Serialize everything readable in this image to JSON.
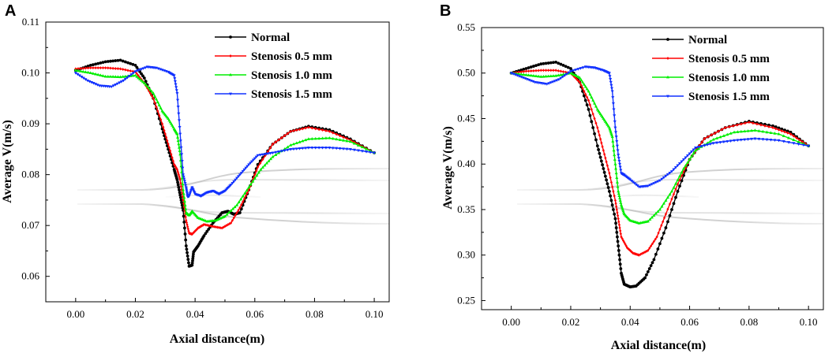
{
  "chart_data": [
    {
      "panel": "A",
      "type": "line",
      "title": "",
      "xlabel": "Axial distance(m)",
      "ylabel": "Average V(m/s)",
      "xlim": [
        -0.01,
        0.105
      ],
      "ylim": [
        0.055,
        0.11
      ],
      "xticks": [
        0.0,
        0.02,
        0.04,
        0.06,
        0.08,
        0.1
      ],
      "xtick_labels": [
        "0.00",
        "0.02",
        "0.04",
        "0.06",
        "0.08",
        "0.10"
      ],
      "yticks": [
        0.06,
        0.07,
        0.08,
        0.09,
        0.1,
        0.11
      ],
      "ytick_labels": [
        "0.06",
        "0.07",
        "0.08",
        "0.09",
        "0.10",
        "0.11"
      ],
      "legend_position": "top-right",
      "series": [
        {
          "name": "Normal",
          "color": "#000000",
          "points": [
            [
              0,
              0.1005
            ],
            [
              0.005,
              0.1015
            ],
            [
              0.01,
              0.1022
            ],
            [
              0.015,
              0.1025
            ],
            [
              0.02,
              0.1015
            ],
            [
              0.023,
              0.099
            ],
            [
              0.026,
              0.095
            ],
            [
              0.029,
              0.089
            ],
            [
              0.031,
              0.085
            ],
            [
              0.033,
              0.081
            ],
            [
              0.034,
              0.079
            ],
            [
              0.035,
              0.076
            ],
            [
              0.036,
              0.073
            ],
            [
              0.037,
              0.066
            ],
            [
              0.038,
              0.062
            ],
            [
              0.039,
              0.0622
            ],
            [
              0.0395,
              0.0648
            ],
            [
              0.041,
              0.066
            ],
            [
              0.043,
              0.068
            ],
            [
              0.046,
              0.0705
            ],
            [
              0.049,
              0.0725
            ],
            [
              0.051,
              0.0728
            ],
            [
              0.053,
              0.0722
            ],
            [
              0.055,
              0.0725
            ],
            [
              0.058,
              0.077
            ],
            [
              0.061,
              0.082
            ],
            [
              0.066,
              0.086
            ],
            [
              0.072,
              0.0885
            ],
            [
              0.078,
              0.0895
            ],
            [
              0.085,
              0.0888
            ],
            [
              0.092,
              0.087
            ],
            [
              0.1,
              0.0843
            ]
          ]
        },
        {
          "name": "Stenosis 0.5 mm",
          "color": "#ff0000",
          "points": [
            [
              0,
              0.1008
            ],
            [
              0.005,
              0.101
            ],
            [
              0.01,
              0.101
            ],
            [
              0.015,
              0.1008
            ],
            [
              0.02,
              0.1002
            ],
            [
              0.023,
              0.098
            ],
            [
              0.026,
              0.095
            ],
            [
              0.029,
              0.09
            ],
            [
              0.031,
              0.086
            ],
            [
              0.033,
              0.082
            ],
            [
              0.034,
              0.081
            ],
            [
              0.035,
              0.079
            ],
            [
              0.036,
              0.075
            ],
            [
              0.037,
              0.071
            ],
            [
              0.038,
              0.0685
            ],
            [
              0.039,
              0.0683
            ],
            [
              0.041,
              0.0695
            ],
            [
              0.043,
              0.0702
            ],
            [
              0.046,
              0.0698
            ],
            [
              0.049,
              0.0695
            ],
            [
              0.052,
              0.0705
            ],
            [
              0.055,
              0.0735
            ],
            [
              0.058,
              0.077
            ],
            [
              0.061,
              0.0815
            ],
            [
              0.066,
              0.086
            ],
            [
              0.072,
              0.0885
            ],
            [
              0.078,
              0.0893
            ],
            [
              0.085,
              0.0885
            ],
            [
              0.092,
              0.0868
            ],
            [
              0.1,
              0.0843
            ]
          ]
        },
        {
          "name": "Stenosis 1.0 mm",
          "color": "#00ee00",
          "points": [
            [
              0,
              0.1005
            ],
            [
              0.005,
              0.1
            ],
            [
              0.01,
              0.0993
            ],
            [
              0.015,
              0.0992
            ],
            [
              0.02,
              0.0995
            ],
            [
              0.023,
              0.098
            ],
            [
              0.026,
              0.096
            ],
            [
              0.029,
              0.0925
            ],
            [
              0.031,
              0.091
            ],
            [
              0.033,
              0.089
            ],
            [
              0.034,
              0.088
            ],
            [
              0.035,
              0.084
            ],
            [
              0.036,
              0.077
            ],
            [
              0.037,
              0.0725
            ],
            [
              0.038,
              0.072
            ],
            [
              0.039,
              0.0728
            ],
            [
              0.041,
              0.0715
            ],
            [
              0.044,
              0.0708
            ],
            [
              0.047,
              0.071
            ],
            [
              0.05,
              0.0718
            ],
            [
              0.054,
              0.074
            ],
            [
              0.058,
              0.0775
            ],
            [
              0.062,
              0.081
            ],
            [
              0.066,
              0.0835
            ],
            [
              0.072,
              0.0858
            ],
            [
              0.078,
              0.087
            ],
            [
              0.085,
              0.0872
            ],
            [
              0.092,
              0.0865
            ],
            [
              0.1,
              0.0843
            ]
          ]
        },
        {
          "name": "Stenosis 1.5 mm",
          "color": "#1030ff",
          "points": [
            [
              0,
              0.1
            ],
            [
              0.004,
              0.0985
            ],
            [
              0.008,
              0.0975
            ],
            [
              0.012,
              0.0973
            ],
            [
              0.016,
              0.0985
            ],
            [
              0.02,
              0.1003
            ],
            [
              0.024,
              0.1012
            ],
            [
              0.027,
              0.101
            ],
            [
              0.031,
              0.1002
            ],
            [
              0.033,
              0.0995
            ],
            [
              0.034,
              0.096
            ],
            [
              0.035,
              0.088
            ],
            [
              0.036,
              0.08
            ],
            [
              0.037,
              0.0775
            ],
            [
              0.0375,
              0.0757
            ],
            [
              0.038,
              0.0758
            ],
            [
              0.039,
              0.0775
            ],
            [
              0.04,
              0.0762
            ],
            [
              0.042,
              0.0758
            ],
            [
              0.044,
              0.0765
            ],
            [
              0.046,
              0.0768
            ],
            [
              0.048,
              0.0762
            ],
            [
              0.05,
              0.0768
            ],
            [
              0.052,
              0.078
            ],
            [
              0.055,
              0.08
            ],
            [
              0.058,
              0.082
            ],
            [
              0.061,
              0.0838
            ],
            [
              0.066,
              0.0843
            ],
            [
              0.072,
              0.085
            ],
            [
              0.078,
              0.0853
            ],
            [
              0.085,
              0.0853
            ],
            [
              0.092,
              0.085
            ],
            [
              0.1,
              0.0843
            ]
          ]
        }
      ]
    },
    {
      "panel": "B",
      "type": "line",
      "title": "",
      "xlabel": "Axial distance(m)",
      "ylabel": "Average V(m/s)",
      "xlim": [
        -0.01,
        0.105
      ],
      "ylim": [
        0.24,
        0.55
      ],
      "xticks": [
        0.0,
        0.02,
        0.04,
        0.06,
        0.08,
        0.1
      ],
      "xtick_labels": [
        "0.00",
        "0.02",
        "0.04",
        "0.06",
        "0.08",
        "0.10"
      ],
      "yticks": [
        0.25,
        0.3,
        0.35,
        0.4,
        0.45,
        0.5,
        0.55
      ],
      "ytick_labels": [
        "0.25",
        "0.30",
        "0.35",
        "0.40",
        "0.45",
        "0.50",
        "0.55"
      ],
      "legend_position": "top-right",
      "series": [
        {
          "name": "Normal",
          "color": "#000000",
          "points": [
            [
              0,
              0.5
            ],
            [
              0.005,
              0.505
            ],
            [
              0.01,
              0.51
            ],
            [
              0.015,
              0.512
            ],
            [
              0.02,
              0.505
            ],
            [
              0.023,
              0.49
            ],
            [
              0.026,
              0.46
            ],
            [
              0.029,
              0.42
            ],
            [
              0.031,
              0.395
            ],
            [
              0.033,
              0.37
            ],
            [
              0.035,
              0.34
            ],
            [
              0.036,
              0.31
            ],
            [
              0.037,
              0.28
            ],
            [
              0.038,
              0.268
            ],
            [
              0.04,
              0.265
            ],
            [
              0.042,
              0.266
            ],
            [
              0.045,
              0.275
            ],
            [
              0.048,
              0.295
            ],
            [
              0.052,
              0.33
            ],
            [
              0.056,
              0.37
            ],
            [
              0.06,
              0.405
            ],
            [
              0.065,
              0.428
            ],
            [
              0.072,
              0.44
            ],
            [
              0.08,
              0.447
            ],
            [
              0.088,
              0.442
            ],
            [
              0.094,
              0.435
            ],
            [
              0.1,
              0.42
            ]
          ]
        },
        {
          "name": "Stenosis 0.5 mm",
          "color": "#ff0000",
          "points": [
            [
              0,
              0.5
            ],
            [
              0.005,
              0.502
            ],
            [
              0.01,
              0.503
            ],
            [
              0.015,
              0.503
            ],
            [
              0.02,
              0.5
            ],
            [
              0.023,
              0.49
            ],
            [
              0.026,
              0.47
            ],
            [
              0.029,
              0.44
            ],
            [
              0.031,
              0.415
            ],
            [
              0.033,
              0.39
            ],
            [
              0.035,
              0.36
            ],
            [
              0.036,
              0.34
            ],
            [
              0.037,
              0.32
            ],
            [
              0.039,
              0.308
            ],
            [
              0.041,
              0.302
            ],
            [
              0.043,
              0.3
            ],
            [
              0.046,
              0.305
            ],
            [
              0.049,
              0.32
            ],
            [
              0.052,
              0.345
            ],
            [
              0.056,
              0.378
            ],
            [
              0.06,
              0.405
            ],
            [
              0.065,
              0.428
            ],
            [
              0.072,
              0.44
            ],
            [
              0.08,
              0.446
            ],
            [
              0.088,
              0.44
            ],
            [
              0.094,
              0.433
            ],
            [
              0.1,
              0.42
            ]
          ]
        },
        {
          "name": "Stenosis 1.0 mm",
          "color": "#00ee00",
          "points": [
            [
              0,
              0.5
            ],
            [
              0.005,
              0.498
            ],
            [
              0.01,
              0.496
            ],
            [
              0.015,
              0.497
            ],
            [
              0.02,
              0.5
            ],
            [
              0.023,
              0.495
            ],
            [
              0.026,
              0.48
            ],
            [
              0.029,
              0.46
            ],
            [
              0.031,
              0.45
            ],
            [
              0.033,
              0.44
            ],
            [
              0.034,
              0.43
            ],
            [
              0.035,
              0.4
            ],
            [
              0.036,
              0.37
            ],
            [
              0.037,
              0.355
            ],
            [
              0.038,
              0.345
            ],
            [
              0.04,
              0.338
            ],
            [
              0.043,
              0.335
            ],
            [
              0.046,
              0.337
            ],
            [
              0.05,
              0.35
            ],
            [
              0.054,
              0.37
            ],
            [
              0.058,
              0.395
            ],
            [
              0.062,
              0.415
            ],
            [
              0.068,
              0.427
            ],
            [
              0.075,
              0.435
            ],
            [
              0.082,
              0.437
            ],
            [
              0.09,
              0.433
            ],
            [
              0.1,
              0.42
            ]
          ]
        },
        {
          "name": "Stenosis 1.5 mm",
          "color": "#1030ff",
          "points": [
            [
              0,
              0.5
            ],
            [
              0.004,
              0.495
            ],
            [
              0.008,
              0.49
            ],
            [
              0.012,
              0.488
            ],
            [
              0.016,
              0.493
            ],
            [
              0.02,
              0.502
            ],
            [
              0.025,
              0.507
            ],
            [
              0.028,
              0.506
            ],
            [
              0.031,
              0.503
            ],
            [
              0.033,
              0.5
            ],
            [
              0.034,
              0.48
            ],
            [
              0.035,
              0.44
            ],
            [
              0.036,
              0.41
            ],
            [
              0.037,
              0.39
            ],
            [
              0.038,
              0.388
            ],
            [
              0.04,
              0.383
            ],
            [
              0.043,
              0.375
            ],
            [
              0.046,
              0.376
            ],
            [
              0.05,
              0.382
            ],
            [
              0.054,
              0.392
            ],
            [
              0.058,
              0.405
            ],
            [
              0.062,
              0.418
            ],
            [
              0.068,
              0.423
            ],
            [
              0.075,
              0.426
            ],
            [
              0.082,
              0.428
            ],
            [
              0.09,
              0.426
            ],
            [
              0.1,
              0.42
            ]
          ]
        }
      ]
    }
  ]
}
